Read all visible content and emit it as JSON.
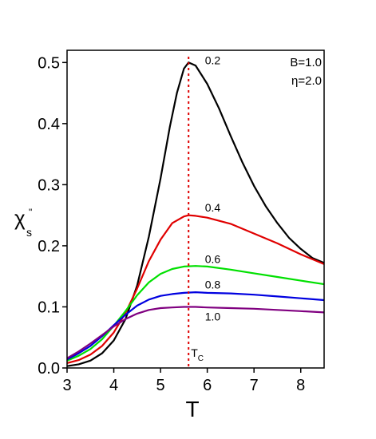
{
  "chart_data": {
    "type": "line",
    "xlabel": "T",
    "ylabel_main": "χ",
    "ylabel_sub": "s",
    "ylabel_sup": "\"",
    "xlim": [
      3,
      8.5
    ],
    "ylim": [
      0,
      0.52
    ],
    "xticks": [
      3,
      4,
      5,
      6,
      7,
      8
    ],
    "yticks": [
      0.0,
      0.1,
      0.2,
      0.3,
      0.4,
      0.5
    ],
    "ytick_labels": [
      "0.0",
      "0.1",
      "0.2",
      "0.3",
      "0.4",
      "0.5"
    ],
    "grid": false,
    "legend": {
      "lines": [
        "B=1.0",
        "η=2.0"
      ],
      "placement": "top-right"
    },
    "tc": {
      "x": 5.6,
      "label_main": "T",
      "label_sub": "C",
      "color": "#e00000"
    },
    "series": [
      {
        "name": "0.2",
        "color": "#000000",
        "points": [
          [
            3.0,
            0.003
          ],
          [
            3.25,
            0.006
          ],
          [
            3.5,
            0.012
          ],
          [
            3.75,
            0.024
          ],
          [
            4.0,
            0.045
          ],
          [
            4.25,
            0.08
          ],
          [
            4.5,
            0.135
          ],
          [
            4.75,
            0.215
          ],
          [
            5.0,
            0.31
          ],
          [
            5.2,
            0.395
          ],
          [
            5.35,
            0.45
          ],
          [
            5.5,
            0.49
          ],
          [
            5.6,
            0.5
          ],
          [
            5.75,
            0.495
          ],
          [
            6.0,
            0.465
          ],
          [
            6.25,
            0.425
          ],
          [
            6.5,
            0.38
          ],
          [
            6.75,
            0.337
          ],
          [
            7.0,
            0.298
          ],
          [
            7.25,
            0.265
          ],
          [
            7.5,
            0.237
          ],
          [
            7.75,
            0.213
          ],
          [
            8.0,
            0.195
          ],
          [
            8.25,
            0.18
          ],
          [
            8.5,
            0.172
          ]
        ],
        "label": "0.2",
        "label_at": [
          5.95,
          0.497
        ]
      },
      {
        "name": "0.4",
        "color": "#e00000",
        "points": [
          [
            3.0,
            0.008
          ],
          [
            3.25,
            0.013
          ],
          [
            3.5,
            0.022
          ],
          [
            3.75,
            0.036
          ],
          [
            4.0,
            0.058
          ],
          [
            4.25,
            0.09
          ],
          [
            4.5,
            0.13
          ],
          [
            4.75,
            0.175
          ],
          [
            5.0,
            0.21
          ],
          [
            5.25,
            0.237
          ],
          [
            5.5,
            0.248
          ],
          [
            5.6,
            0.25
          ],
          [
            5.75,
            0.249
          ],
          [
            6.0,
            0.246
          ],
          [
            6.5,
            0.236
          ],
          [
            7.0,
            0.22
          ],
          [
            7.5,
            0.204
          ],
          [
            8.0,
            0.186
          ],
          [
            8.5,
            0.17
          ]
        ],
        "label": "0.4",
        "label_at": [
          5.95,
          0.256
        ]
      },
      {
        "name": "0.6",
        "color": "#00e000",
        "points": [
          [
            3.0,
            0.012
          ],
          [
            3.25,
            0.02
          ],
          [
            3.5,
            0.031
          ],
          [
            3.75,
            0.047
          ],
          [
            4.0,
            0.069
          ],
          [
            4.25,
            0.093
          ],
          [
            4.5,
            0.119
          ],
          [
            4.75,
            0.14
          ],
          [
            5.0,
            0.154
          ],
          [
            5.25,
            0.162
          ],
          [
            5.5,
            0.166
          ],
          [
            5.75,
            0.167
          ],
          [
            6.0,
            0.166
          ],
          [
            6.5,
            0.161
          ],
          [
            7.0,
            0.155
          ],
          [
            7.5,
            0.149
          ],
          [
            8.0,
            0.143
          ],
          [
            8.5,
            0.137
          ]
        ],
        "label": "0.6",
        "label_at": [
          5.95,
          0.172
        ]
      },
      {
        "name": "0.8",
        "color": "#0000e0",
        "points": [
          [
            3.0,
            0.014
          ],
          [
            3.25,
            0.024
          ],
          [
            3.5,
            0.036
          ],
          [
            3.75,
            0.052
          ],
          [
            4.0,
            0.07
          ],
          [
            4.25,
            0.087
          ],
          [
            4.5,
            0.102
          ],
          [
            4.75,
            0.112
          ],
          [
            5.0,
            0.118
          ],
          [
            5.25,
            0.121
          ],
          [
            5.5,
            0.123
          ],
          [
            5.75,
            0.124
          ],
          [
            6.0,
            0.123
          ],
          [
            6.5,
            0.122
          ],
          [
            7.0,
            0.12
          ],
          [
            7.5,
            0.117
          ],
          [
            8.0,
            0.114
          ],
          [
            8.5,
            0.111
          ]
        ],
        "label": "0.8",
        "label_at": [
          5.95,
          0.13
        ]
      },
      {
        "name": "1.0",
        "color": "#800080",
        "points": [
          [
            3.0,
            0.016
          ],
          [
            3.25,
            0.027
          ],
          [
            3.5,
            0.04
          ],
          [
            3.75,
            0.054
          ],
          [
            4.0,
            0.068
          ],
          [
            4.25,
            0.08
          ],
          [
            4.5,
            0.089
          ],
          [
            4.75,
            0.095
          ],
          [
            5.0,
            0.098
          ],
          [
            5.25,
            0.099
          ],
          [
            5.5,
            0.1
          ],
          [
            5.75,
            0.1
          ],
          [
            6.0,
            0.099
          ],
          [
            6.5,
            0.098
          ],
          [
            7.0,
            0.097
          ],
          [
            7.5,
            0.095
          ],
          [
            8.0,
            0.093
          ],
          [
            8.5,
            0.091
          ]
        ],
        "label": "1.0",
        "label_at": [
          5.95,
          0.078
        ]
      }
    ]
  }
}
